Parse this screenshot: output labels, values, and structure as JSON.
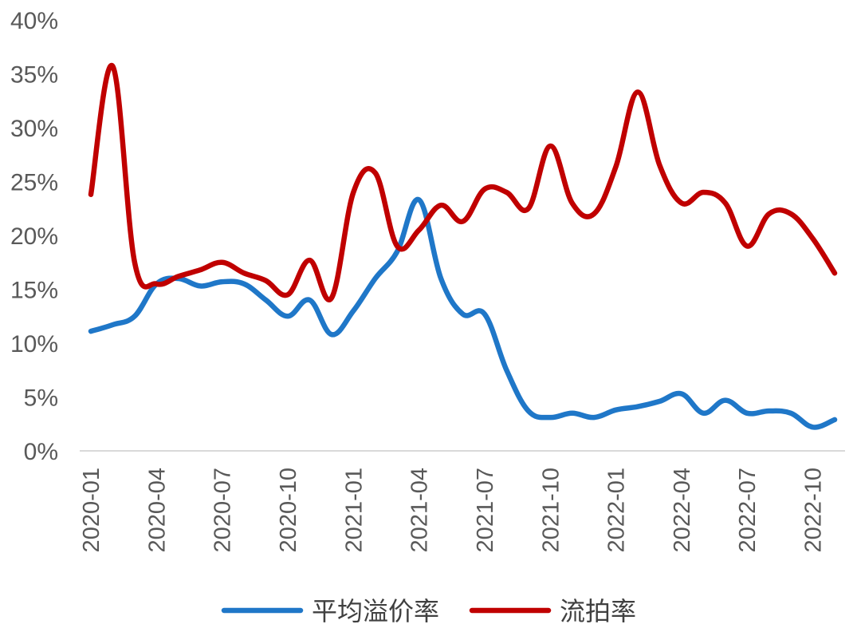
{
  "chart_data": {
    "type": "line",
    "title": "",
    "xlabel": "",
    "ylabel": "",
    "ylim": [
      0,
      0.4
    ],
    "y_ticks": [
      "0%",
      "5%",
      "10%",
      "15%",
      "20%",
      "25%",
      "30%",
      "35%",
      "40%"
    ],
    "x_tick_labels": [
      "2020-01",
      "2020-04",
      "2020-07",
      "2020-10",
      "2021-01",
      "2021-04",
      "2021-07",
      "2021-10",
      "2022-01",
      "2022-04",
      "2022-07",
      "2022-10"
    ],
    "grid": false,
    "legend_position": "bottom",
    "x": [
      "2020-01",
      "2020-02",
      "2020-03",
      "2020-04",
      "2020-05",
      "2020-06",
      "2020-07",
      "2020-08",
      "2020-09",
      "2020-10",
      "2020-11",
      "2020-12",
      "2021-01",
      "2021-02",
      "2021-03",
      "2021-04",
      "2021-05",
      "2021-06",
      "2021-07",
      "2021-08",
      "2021-09",
      "2021-10",
      "2021-11",
      "2021-12",
      "2022-01",
      "2022-02",
      "2022-03",
      "2022-04",
      "2022-05",
      "2022-06",
      "2022-07",
      "2022-08",
      "2022-09",
      "2022-10",
      "2022-11"
    ],
    "series": [
      {
        "name": "平均溢价率",
        "color": "#1f77c8",
        "values": [
          0.111,
          0.117,
          0.125,
          0.155,
          0.16,
          0.153,
          0.157,
          0.155,
          0.14,
          0.125,
          0.14,
          0.108,
          0.13,
          0.16,
          0.185,
          0.233,
          0.16,
          0.127,
          0.127,
          0.075,
          0.037,
          0.031,
          0.035,
          0.031,
          0.038,
          0.041,
          0.046,
          0.053,
          0.035,
          0.047,
          0.035,
          0.037,
          0.035,
          0.022,
          0.029
        ]
      },
      {
        "name": "流拍率",
        "color": "#c00000",
        "values": [
          0.238,
          0.357,
          0.175,
          0.155,
          0.162,
          0.168,
          0.175,
          0.165,
          0.158,
          0.145,
          0.177,
          0.142,
          0.24,
          0.258,
          0.19,
          0.205,
          0.228,
          0.213,
          0.243,
          0.24,
          0.225,
          0.283,
          0.23,
          0.22,
          0.264,
          0.333,
          0.265,
          0.23,
          0.24,
          0.23,
          0.19,
          0.22,
          0.22,
          0.197,
          0.165
        ]
      }
    ]
  }
}
